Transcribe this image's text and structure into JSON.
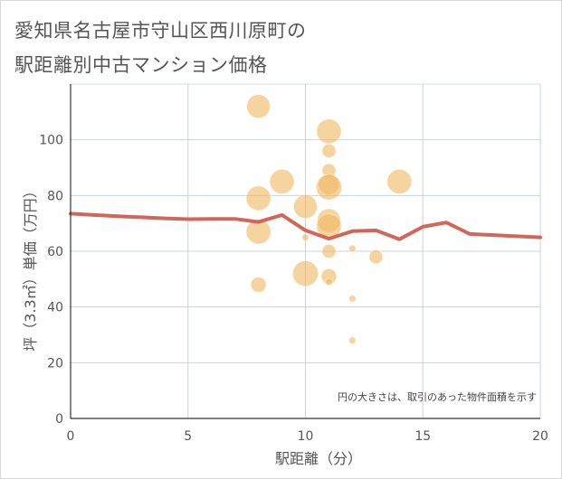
{
  "chart_data": {
    "type": "scatter",
    "title_lines": [
      "愛知県名古屋市守山区西川原町の",
      "駅距離別中古マンション価格"
    ],
    "xlabel": "駅距離（分）",
    "ylabel": "坪（3.3㎡）単価（万円）",
    "xlim": [
      0,
      20
    ],
    "ylim": [
      0,
      120
    ],
    "x_ticks": [
      "0",
      "5",
      "10",
      "15",
      "20"
    ],
    "y_ticks": [
      "0",
      "20",
      "40",
      "60",
      "80",
      "100"
    ],
    "grid": true,
    "note": "円の大きさは、取引のあった物件面積を示す",
    "colors": {
      "bubble": "#f0b860",
      "line": "#d0675a",
      "grid": "#c5d3e2",
      "axis": "#333333"
    },
    "bubbles": [
      {
        "x": 8,
        "y": 112,
        "size": 60
      },
      {
        "x": 8,
        "y": 79,
        "size": 65
      },
      {
        "x": 8,
        "y": 67,
        "size": 65
      },
      {
        "x": 8,
        "y": 48,
        "size": 25
      },
      {
        "x": 9,
        "y": 85,
        "size": 65
      },
      {
        "x": 10,
        "y": 76,
        "size": 60
      },
      {
        "x": 10,
        "y": 65,
        "size": 5
      },
      {
        "x": 10,
        "y": 52,
        "size": 70
      },
      {
        "x": 11,
        "y": 103,
        "size": 65
      },
      {
        "x": 11,
        "y": 96,
        "size": 20
      },
      {
        "x": 11,
        "y": 89,
        "size": 20
      },
      {
        "x": 11,
        "y": 84,
        "size": 45
      },
      {
        "x": 11,
        "y": 83,
        "size": 70
      },
      {
        "x": 11,
        "y": 71,
        "size": 60
      },
      {
        "x": 11,
        "y": 69,
        "size": 65
      },
      {
        "x": 11,
        "y": 60,
        "size": 20
      },
      {
        "x": 11,
        "y": 51,
        "size": 25
      },
      {
        "x": 11,
        "y": 49,
        "size": 5
      },
      {
        "x": 12,
        "y": 61,
        "size": 5
      },
      {
        "x": 12,
        "y": 43,
        "size": 5
      },
      {
        "x": 12,
        "y": 28,
        "size": 5
      },
      {
        "x": 13,
        "y": 58,
        "size": 20
      },
      {
        "x": 14,
        "y": 85,
        "size": 65
      }
    ],
    "series": [
      {
        "name": "average",
        "x": [
          0,
          1,
          2,
          3,
          4,
          5,
          6,
          7,
          8,
          9,
          10,
          11,
          12,
          13,
          14,
          15,
          16,
          17,
          18,
          19,
          20
        ],
        "values": [
          73.5,
          73.0,
          72.6,
          72.2,
          71.8,
          71.5,
          71.6,
          71.6,
          70.5,
          73.0,
          67.5,
          64.5,
          67.2,
          67.5,
          64.3,
          68.8,
          70.3,
          66.2,
          65.8,
          65.4,
          65.0
        ]
      }
    ]
  }
}
